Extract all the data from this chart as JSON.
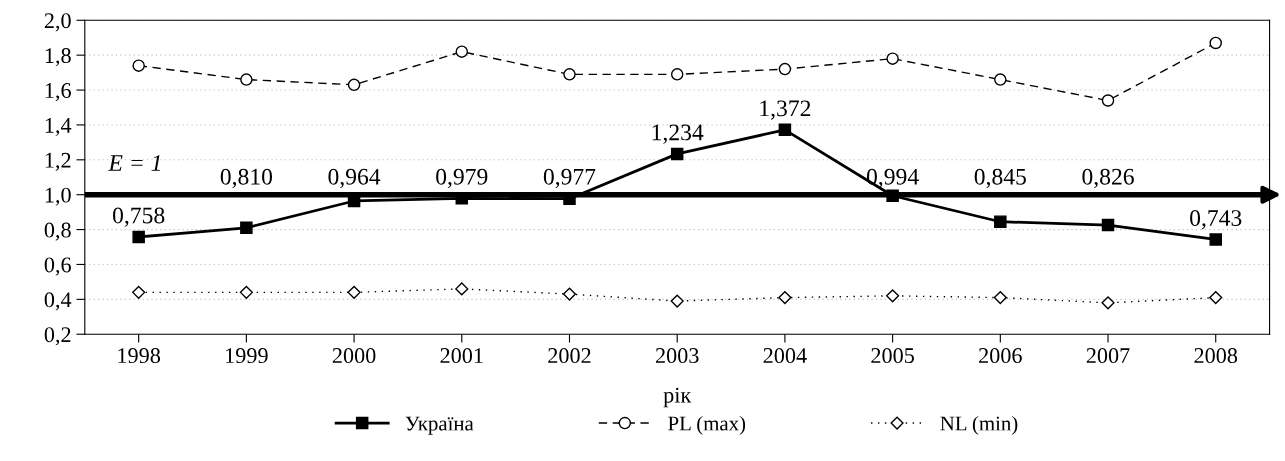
{
  "chart_data": {
    "type": "line",
    "xlabel": "рік",
    "categories": [
      "1998",
      "1999",
      "2000",
      "2001",
      "2002",
      "2003",
      "2004",
      "2005",
      "2006",
      "2007",
      "2008"
    ],
    "series": [
      {
        "name": "Україна",
        "color": "#000000",
        "marker": "square",
        "line_style": "solid",
        "values": [
          0.758,
          0.81,
          0.964,
          0.979,
          0.977,
          1.234,
          1.372,
          0.994,
          0.845,
          0.826,
          0.743
        ],
        "value_labels": [
          "0,758",
          "0,810",
          "0,964",
          "0,979",
          "0,977",
          "1,234",
          "1,372",
          "0,994",
          "0,845",
          "0,826",
          "0,743"
        ]
      },
      {
        "name": "PL (max)",
        "color": "#000000",
        "marker": "circle",
        "line_style": "dashed",
        "values": [
          1.74,
          1.66,
          1.63,
          1.82,
          1.69,
          1.69,
          1.72,
          1.78,
          1.66,
          1.54,
          1.87
        ]
      },
      {
        "name": "NL (min)",
        "color": "#000000",
        "marker": "diamond",
        "line_style": "dotted",
        "values": [
          0.44,
          0.44,
          0.44,
          0.46,
          0.43,
          0.39,
          0.41,
          0.42,
          0.41,
          0.38,
          0.41
        ]
      }
    ],
    "ylim": [
      0.2,
      2.0
    ],
    "yticks": [
      {
        "value": 0.2,
        "label": "0,2"
      },
      {
        "value": 0.4,
        "label": "0,4"
      },
      {
        "value": 0.6,
        "label": "0,6"
      },
      {
        "value": 0.8,
        "label": "0,8"
      },
      {
        "value": 1.0,
        "label": "1,0"
      },
      {
        "value": 1.2,
        "label": "1,2"
      },
      {
        "value": 1.4,
        "label": "1,4"
      },
      {
        "value": 1.6,
        "label": "1,6"
      },
      {
        "value": 1.8,
        "label": "1,8"
      },
      {
        "value": 2.0,
        "label": "2,0"
      }
    ],
    "ref_lines": [
      {
        "axis": "y",
        "value": 1.0,
        "label": "E = 1",
        "color": "#000000",
        "line_style": "solid"
      }
    ],
    "grid": "y",
    "legend": "bottom"
  }
}
